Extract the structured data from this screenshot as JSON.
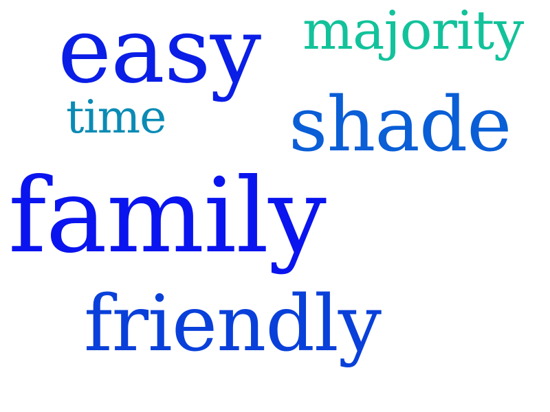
{
  "words": [
    {
      "text": "easy",
      "color": "#0a1ee6"
    },
    {
      "text": "majority",
      "color": "#12c29a"
    },
    {
      "text": "time",
      "color": "#0a8bb5"
    },
    {
      "text": "shade",
      "color": "#0a5ed6"
    },
    {
      "text": "family",
      "color": "#0a14ee"
    },
    {
      "text": "friendly",
      "color": "#0a40da"
    }
  ]
}
